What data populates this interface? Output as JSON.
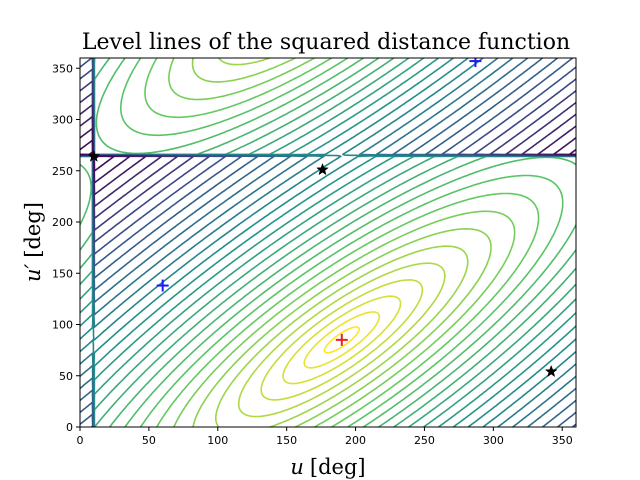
{
  "chart_data": {
    "type": "contour",
    "title": "Level lines of the squared distance function",
    "xlabel": {
      "var": "u",
      "unit": "[deg]"
    },
    "ylabel": {
      "var": "u′",
      "unit": "[deg]"
    },
    "xlim": [
      0,
      360
    ],
    "ylim": [
      0,
      360
    ],
    "xticks": [
      0,
      50,
      100,
      150,
      200,
      250,
      300,
      350
    ],
    "yticks": [
      0,
      50,
      100,
      150,
      200,
      250,
      300,
      350
    ],
    "grid": false,
    "legend": "none",
    "colormap": [
      "#440154",
      "#3b528b",
      "#21918c",
      "#5ec962",
      "#fde725"
    ],
    "minimum": {
      "u": 190,
      "v": 85
    },
    "markers": [
      {
        "kind": "plus",
        "color": "#e8221c",
        "u": 190,
        "v": 85
      },
      {
        "kind": "plus",
        "color": "#1a1aff",
        "u": 60,
        "v": 138
      },
      {
        "kind": "plus",
        "color": "#1a1aff",
        "u": 287,
        "v": 357
      },
      {
        "kind": "star",
        "color": "#000000",
        "u": 10,
        "v": 264
      },
      {
        "kind": "star",
        "color": "#000000",
        "u": 176,
        "v": 251
      },
      {
        "kind": "star",
        "color": "#000000",
        "u": 342,
        "v": 54
      }
    ]
  }
}
